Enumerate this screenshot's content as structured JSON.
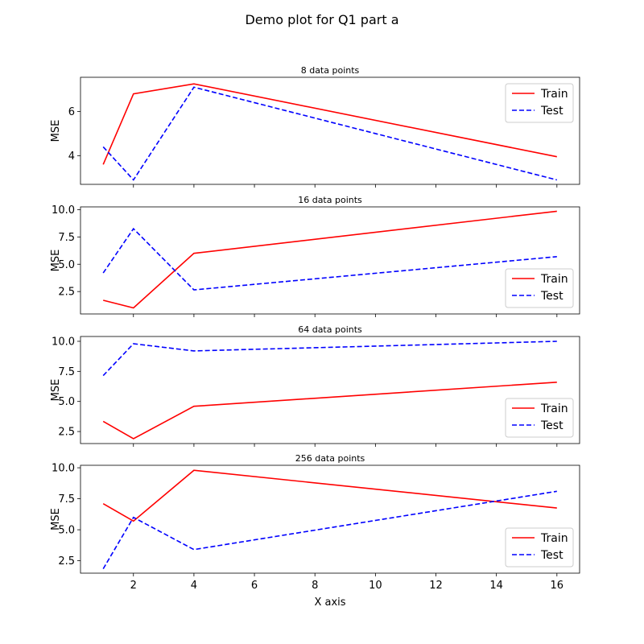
{
  "figure": {
    "suptitle": "Demo plot for Q1 part a",
    "xlabel": "X axis"
  },
  "chart_data": [
    {
      "type": "line",
      "title": "8 data points",
      "ylabel": "MSE",
      "x": [
        1,
        2,
        4,
        16
      ],
      "xlim": [
        0.25,
        16.75
      ],
      "ylim": [
        2.7,
        7.55
      ],
      "yticks": [
        4,
        6
      ],
      "series": [
        {
          "name": "Train",
          "values": [
            3.6,
            6.8,
            7.25,
            3.95
          ],
          "color": "#ff0000",
          "dash": "solid"
        },
        {
          "name": "Test",
          "values": [
            4.4,
            2.9,
            7.1,
            2.9
          ],
          "color": "#0000ff",
          "dash": "dashed"
        }
      ],
      "legend": "upper right"
    },
    {
      "type": "line",
      "title": "16 data points",
      "ylabel": "MSE",
      "x": [
        1,
        2,
        4,
        16
      ],
      "xlim": [
        0.25,
        16.75
      ],
      "ylim": [
        0.45,
        10.25
      ],
      "yticks": [
        2.5,
        5.0,
        7.5,
        10.0
      ],
      "series": [
        {
          "name": "Train",
          "values": [
            1.7,
            1.0,
            6.0,
            9.85
          ],
          "color": "#ff0000",
          "dash": "solid"
        },
        {
          "name": "Test",
          "values": [
            4.2,
            8.25,
            2.65,
            5.7
          ],
          "color": "#0000ff",
          "dash": "dashed"
        }
      ],
      "legend": "lower right"
    },
    {
      "type": "line",
      "title": "64 data points",
      "ylabel": "MSE",
      "x": [
        1,
        2,
        4,
        16
      ],
      "xlim": [
        0.25,
        16.75
      ],
      "ylim": [
        1.5,
        10.4
      ],
      "yticks": [
        2.5,
        5.0,
        7.5,
        10.0
      ],
      "series": [
        {
          "name": "Train",
          "values": [
            3.35,
            1.9,
            4.6,
            6.6
          ],
          "color": "#ff0000",
          "dash": "solid"
        },
        {
          "name": "Test",
          "values": [
            7.15,
            9.8,
            9.2,
            10.0
          ],
          "color": "#0000ff",
          "dash": "dashed"
        }
      ],
      "legend": "lower right"
    },
    {
      "type": "line",
      "title": "256 data points",
      "ylabel": "MSE",
      "x": [
        1,
        2,
        4,
        16
      ],
      "xlim": [
        0.25,
        16.75
      ],
      "ylim": [
        1.5,
        10.2
      ],
      "yticks": [
        2.5,
        5.0,
        7.5,
        10.0
      ],
      "series": [
        {
          "name": "Train",
          "values": [
            7.1,
            5.7,
            9.8,
            6.75
          ],
          "color": "#ff0000",
          "dash": "solid"
        },
        {
          "name": "Test",
          "values": [
            1.85,
            6.0,
            3.4,
            8.1
          ],
          "color": "#0000ff",
          "dash": "dashed"
        }
      ],
      "legend": "lower right"
    }
  ],
  "shared_x": {
    "ticks": [
      2,
      4,
      6,
      8,
      10,
      12,
      14,
      16
    ]
  }
}
